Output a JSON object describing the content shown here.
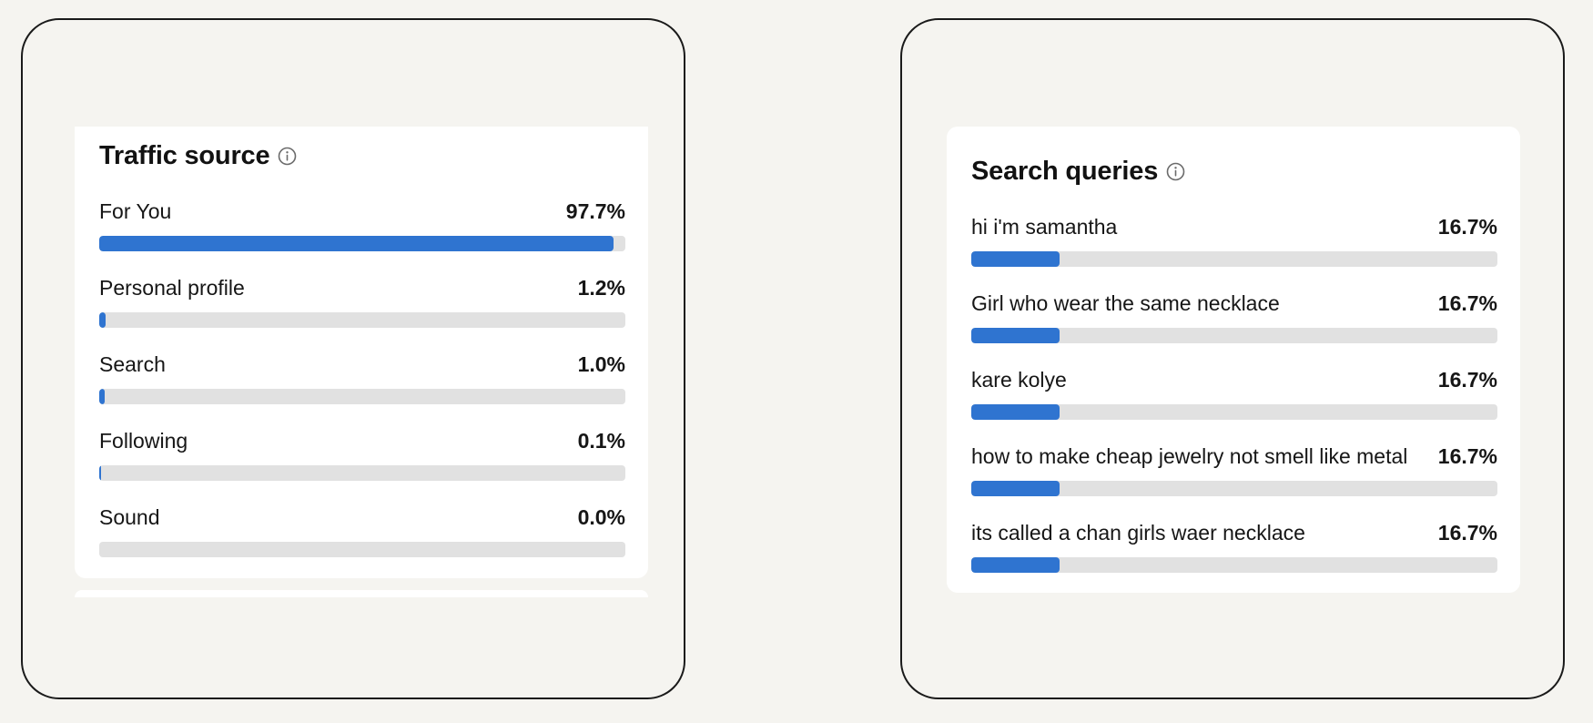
{
  "accent_color": "#2f74d0",
  "track_color": "#e1e1e1",
  "traffic_source": {
    "title": "Traffic source",
    "info_icon": "info-icon",
    "items": [
      {
        "label": "For You",
        "value_text": "97.7%",
        "fraction": 0.977
      },
      {
        "label": "Personal profile",
        "value_text": "1.2%",
        "fraction": 0.012
      },
      {
        "label": "Search",
        "value_text": "1.0%",
        "fraction": 0.01
      },
      {
        "label": "Following",
        "value_text": "0.1%",
        "fraction": 0.001
      },
      {
        "label": "Sound",
        "value_text": "0.0%",
        "fraction": 0.0
      }
    ]
  },
  "search_queries": {
    "title": "Search queries",
    "info_icon": "info-icon",
    "items": [
      {
        "label": "hi i'm samantha",
        "value_text": "16.7%",
        "fraction": 0.167
      },
      {
        "label": "Girl who wear the same necklace",
        "value_text": "16.7%",
        "fraction": 0.167
      },
      {
        "label": "kare kolye",
        "value_text": "16.7%",
        "fraction": 0.167
      },
      {
        "label": "how to make cheap jewelry not smell like metal",
        "value_text": "16.7%",
        "fraction": 0.167
      },
      {
        "label": "its called a chan girls waer necklace",
        "value_text": "16.7%",
        "fraction": 0.167
      }
    ]
  }
}
